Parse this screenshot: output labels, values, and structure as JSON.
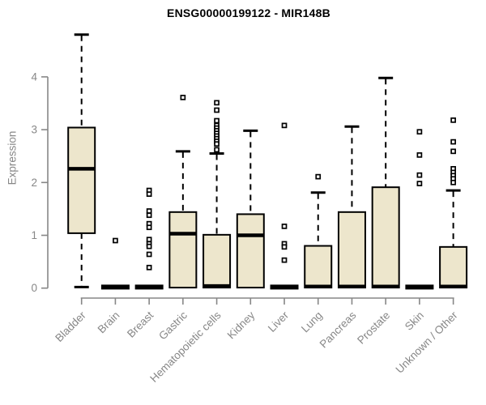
{
  "chart_data": {
    "type": "boxplot",
    "title": "ENSG00000199122 - MIR148B",
    "ylabel": "Expression",
    "xlabel": "",
    "yticks": [
      0,
      1,
      2,
      3,
      4
    ],
    "ylim": [
      0,
      4.9
    ],
    "grid": false,
    "legend": "none",
    "categories": [
      "Bladder",
      "Brain",
      "Breast",
      "Gastric",
      "Hematopoietic cells",
      "Kidney",
      "Liver",
      "Lung",
      "Pancreas",
      "Prostate",
      "Skin",
      "Unknown / Other"
    ],
    "boxes": [
      {
        "category": "Bladder",
        "low": 0.02,
        "q1": 1.04,
        "median": 2.26,
        "q3": 3.04,
        "high": 4.8,
        "outliers": [],
        "flat": false
      },
      {
        "category": "Brain",
        "low": 0,
        "q1": 0,
        "median": 0.02,
        "q3": 0.04,
        "high": 0.04,
        "outliers": [
          0.9
        ],
        "flat": true
      },
      {
        "category": "Breast",
        "low": 0,
        "q1": 0,
        "median": 0.02,
        "q3": 0.04,
        "high": 0.04,
        "outliers": [
          1.85,
          1.78,
          1.46,
          1.38,
          1.22,
          1.15,
          0.92,
          0.84,
          0.79,
          0.64,
          0.39
        ],
        "flat": true
      },
      {
        "category": "Gastric",
        "low": 0,
        "q1": 0.01,
        "median": 1.03,
        "q3": 1.44,
        "high": 2.59,
        "outliers": [
          3.61
        ],
        "flat": false
      },
      {
        "category": "Hematopoietic cells",
        "low": 0,
        "q1": 0.01,
        "median": 0.04,
        "q3": 1.01,
        "high": 2.55,
        "outliers": [
          3.51,
          3.37,
          3.17,
          3.08,
          3.03,
          2.98,
          2.93,
          2.88,
          2.83,
          2.78,
          2.73,
          2.62
        ],
        "flat": false
      },
      {
        "category": "Kidney",
        "low": 0,
        "q1": 0.01,
        "median": 1.0,
        "q3": 1.4,
        "high": 2.98,
        "outliers": [],
        "flat": false
      },
      {
        "category": "Liver",
        "low": 0,
        "q1": 0,
        "median": 0.02,
        "q3": 0.04,
        "high": 0.04,
        "outliers": [
          3.08,
          1.17,
          0.84,
          0.78,
          0.53
        ],
        "flat": true
      },
      {
        "category": "Lung",
        "low": 0,
        "q1": 0.01,
        "median": 0.03,
        "q3": 0.8,
        "high": 1.81,
        "outliers": [
          2.11
        ],
        "flat": false
      },
      {
        "category": "Pancreas",
        "low": 0,
        "q1": 0.01,
        "median": 0.03,
        "q3": 1.44,
        "high": 3.06,
        "outliers": [],
        "flat": false
      },
      {
        "category": "Prostate",
        "low": 0,
        "q1": 0.01,
        "median": 0.03,
        "q3": 1.91,
        "high": 3.98,
        "outliers": [],
        "flat": false
      },
      {
        "category": "Skin",
        "low": 0,
        "q1": 0,
        "median": 0.02,
        "q3": 0.04,
        "high": 0.04,
        "outliers": [
          2.96,
          2.52,
          2.14,
          1.98
        ],
        "flat": true
      },
      {
        "category": "Unknown / Other",
        "low": 0,
        "q1": 0.01,
        "median": 0.03,
        "q3": 0.78,
        "high": 1.85,
        "outliers": [
          3.18,
          2.77,
          2.59,
          2.26,
          2.19,
          2.13,
          2.07,
          2.0
        ],
        "flat": false
      }
    ],
    "colors": {
      "box_fill": "#EDE6CC",
      "box_stroke": "#000000",
      "median": "#000000",
      "whisker": "#000000",
      "outlier_stroke": "#000000",
      "outlier_fill": "#ffffff",
      "axis": "#878787",
      "tick_label": "#878787",
      "title": "#000000"
    }
  }
}
